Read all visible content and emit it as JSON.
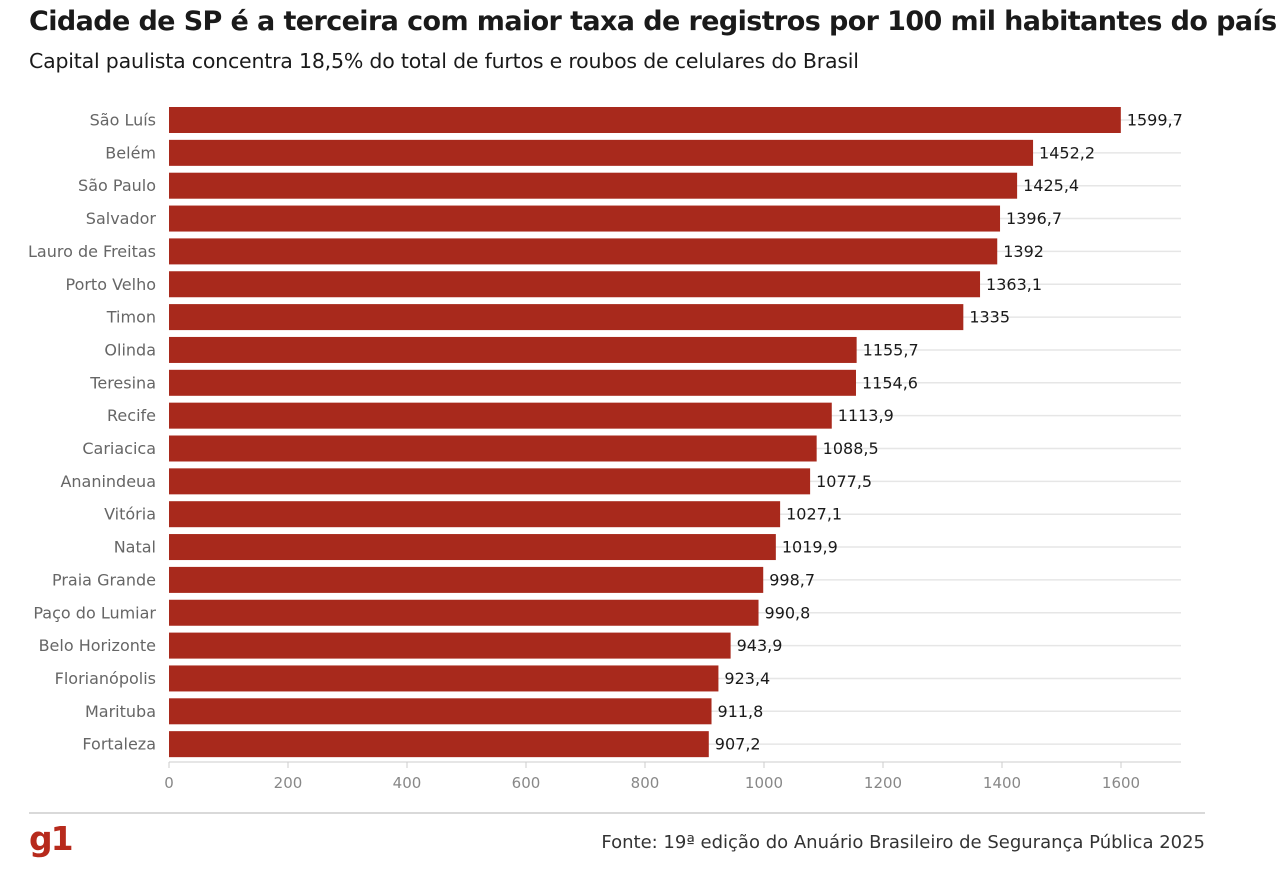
{
  "header": {
    "title": "Cidade de SP é a terceira com maior taxa de registros por 100 mil habitantes do país",
    "subtitle": "Capital paulista concentra 18,5% do total de furtos e roubos de celulares do Brasil"
  },
  "footer": {
    "logo": "g1",
    "source": "Fonte: 19ª edição do Anuário Brasileiro de Segurança Pública 2025"
  },
  "colors": {
    "bar": "#a8291c",
    "logo": "#b72a1c",
    "grid": "#e6e6e6"
  },
  "chart_data": {
    "type": "bar",
    "orientation": "horizontal",
    "categories": [
      "São Luís",
      "Belém",
      "São Paulo",
      "Salvador",
      "Lauro de Freitas",
      "Porto Velho",
      "Timon",
      "Olinda",
      "Teresina",
      "Recife",
      "Cariacica",
      "Ananindeua",
      "Vitória",
      "Natal",
      "Praia Grande",
      "Paço do Lumiar",
      "Belo Horizonte",
      "Florianópolis",
      "Marituba",
      "Fortaleza"
    ],
    "values": [
      1599.7,
      1452.2,
      1425.4,
      1396.7,
      1392,
      1363.1,
      1335,
      1155.7,
      1154.6,
      1113.9,
      1088.5,
      1077.5,
      1027.1,
      1019.9,
      998.7,
      990.8,
      943.9,
      923.4,
      911.8,
      907.2
    ],
    "value_labels": [
      "1599,7",
      "1452,2",
      "1425,4",
      "1396,7",
      "1392",
      "1363,1",
      "1335",
      "1155,7",
      "1154,6",
      "1113,9",
      "1088,5",
      "1077,5",
      "1027,1",
      "1019,9",
      "998,7",
      "990,8",
      "943,9",
      "923,4",
      "911,8",
      "907,2"
    ],
    "xticks": [
      0,
      200,
      400,
      600,
      800,
      1000,
      1200,
      1400,
      1600
    ],
    "xlim": [
      0,
      1700
    ],
    "grid": true,
    "title": "Cidade de SP é a terceira com maior taxa de registros por 100 mil habitantes do país",
    "subtitle": "Capital paulista concentra 18,5% do total de furtos e roubos de celulares do Brasil"
  }
}
